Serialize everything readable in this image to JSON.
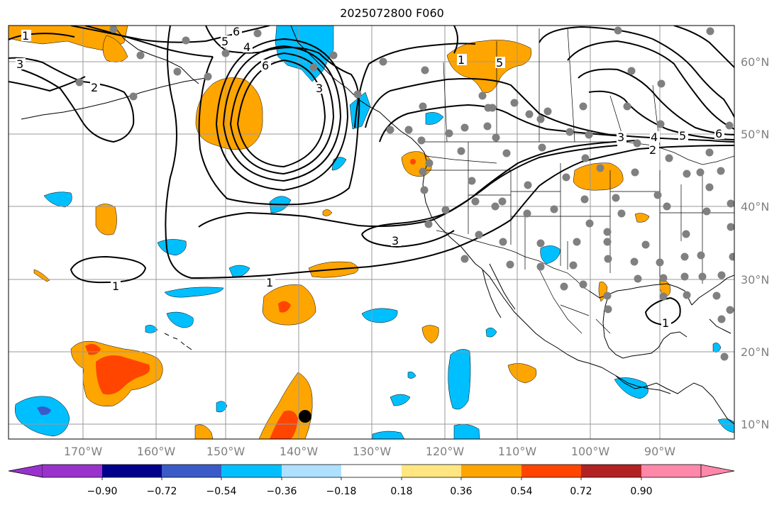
{
  "title": "2025072800 F060",
  "lon_labels": [
    "170°W",
    "160°W",
    "150°W",
    "140°W",
    "130°W",
    "120°W",
    "110°W",
    "100°W",
    "90°W"
  ],
  "lat_labels": [
    "60°N",
    "50°N",
    "40°N",
    "30°N",
    "20°N",
    "10°N"
  ],
  "colorbar": {
    "tick_labels": [
      "−0.90",
      "−0.72",
      "−0.54",
      "−0.36",
      "−0.18",
      "0.18",
      "0.36",
      "0.54",
      "0.72",
      "0.90"
    ],
    "colors": [
      "#9932cc",
      "#00008b",
      "#3a5bc7",
      "#00bfff",
      "#aee0ff",
      "#ffffff",
      "#ffe680",
      "#ffa500",
      "#ff4500",
      "#b22222",
      "#ff88aa"
    ]
  },
  "contour_labels": [
    "1",
    "3",
    "2",
    "5",
    "6",
    "4",
    "6",
    "1",
    "2",
    "3",
    "5",
    "3",
    "4",
    "5",
    "6",
    "1",
    "3",
    "1",
    "1"
  ],
  "colors": {
    "contour": "#000000",
    "grid": "#999999",
    "station": "#808080",
    "marker": "#000000"
  }
}
